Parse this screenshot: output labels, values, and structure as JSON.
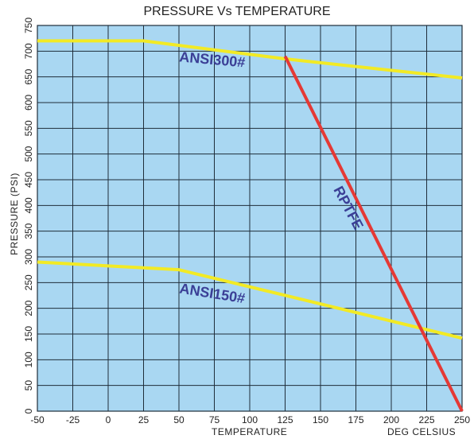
{
  "chart_data": {
    "type": "line",
    "title": "PRESSURE Vs TEMPERATURE",
    "xlabel": "TEMPERATURE",
    "xunit": "DEG CELSIUS",
    "ylabel": "PRESSURE (PSI)",
    "xlim": [
      -50,
      250
    ],
    "ylim": [
      0,
      750
    ],
    "xticks": [
      -50,
      -25,
      0,
      25,
      50,
      75,
      100,
      125,
      150,
      175,
      200,
      225,
      250
    ],
    "yticks": [
      0,
      50,
      100,
      150,
      200,
      250,
      300,
      350,
      400,
      450,
      500,
      550,
      600,
      650,
      700,
      750
    ],
    "grid": true,
    "colors": {
      "plot_bg": "#a9d7f2",
      "grid": "#1f2d3a",
      "ansi": "#f2ea25",
      "rptfe": "#e53935",
      "label": "#3b3f96"
    },
    "series": [
      {
        "name": "ANSI300#",
        "color": "#f2ea25",
        "x": [
          -50,
          25,
          125,
          250
        ],
        "y": [
          720,
          720,
          685,
          648
        ],
        "label_at": [
          50,
          680
        ],
        "label_rotation": 5
      },
      {
        "name": "ANSI150#",
        "color": "#f2ea25",
        "x": [
          -50,
          50,
          250
        ],
        "y": [
          290,
          275,
          142
        ],
        "label_at": [
          50,
          230
        ],
        "label_rotation": 9
      },
      {
        "name": "RPTFE",
        "color": "#e53935",
        "x": [
          125,
          250
        ],
        "y": [
          690,
          0
        ],
        "label_at": [
          159,
          431
        ],
        "label_rotation": 62
      }
    ]
  }
}
